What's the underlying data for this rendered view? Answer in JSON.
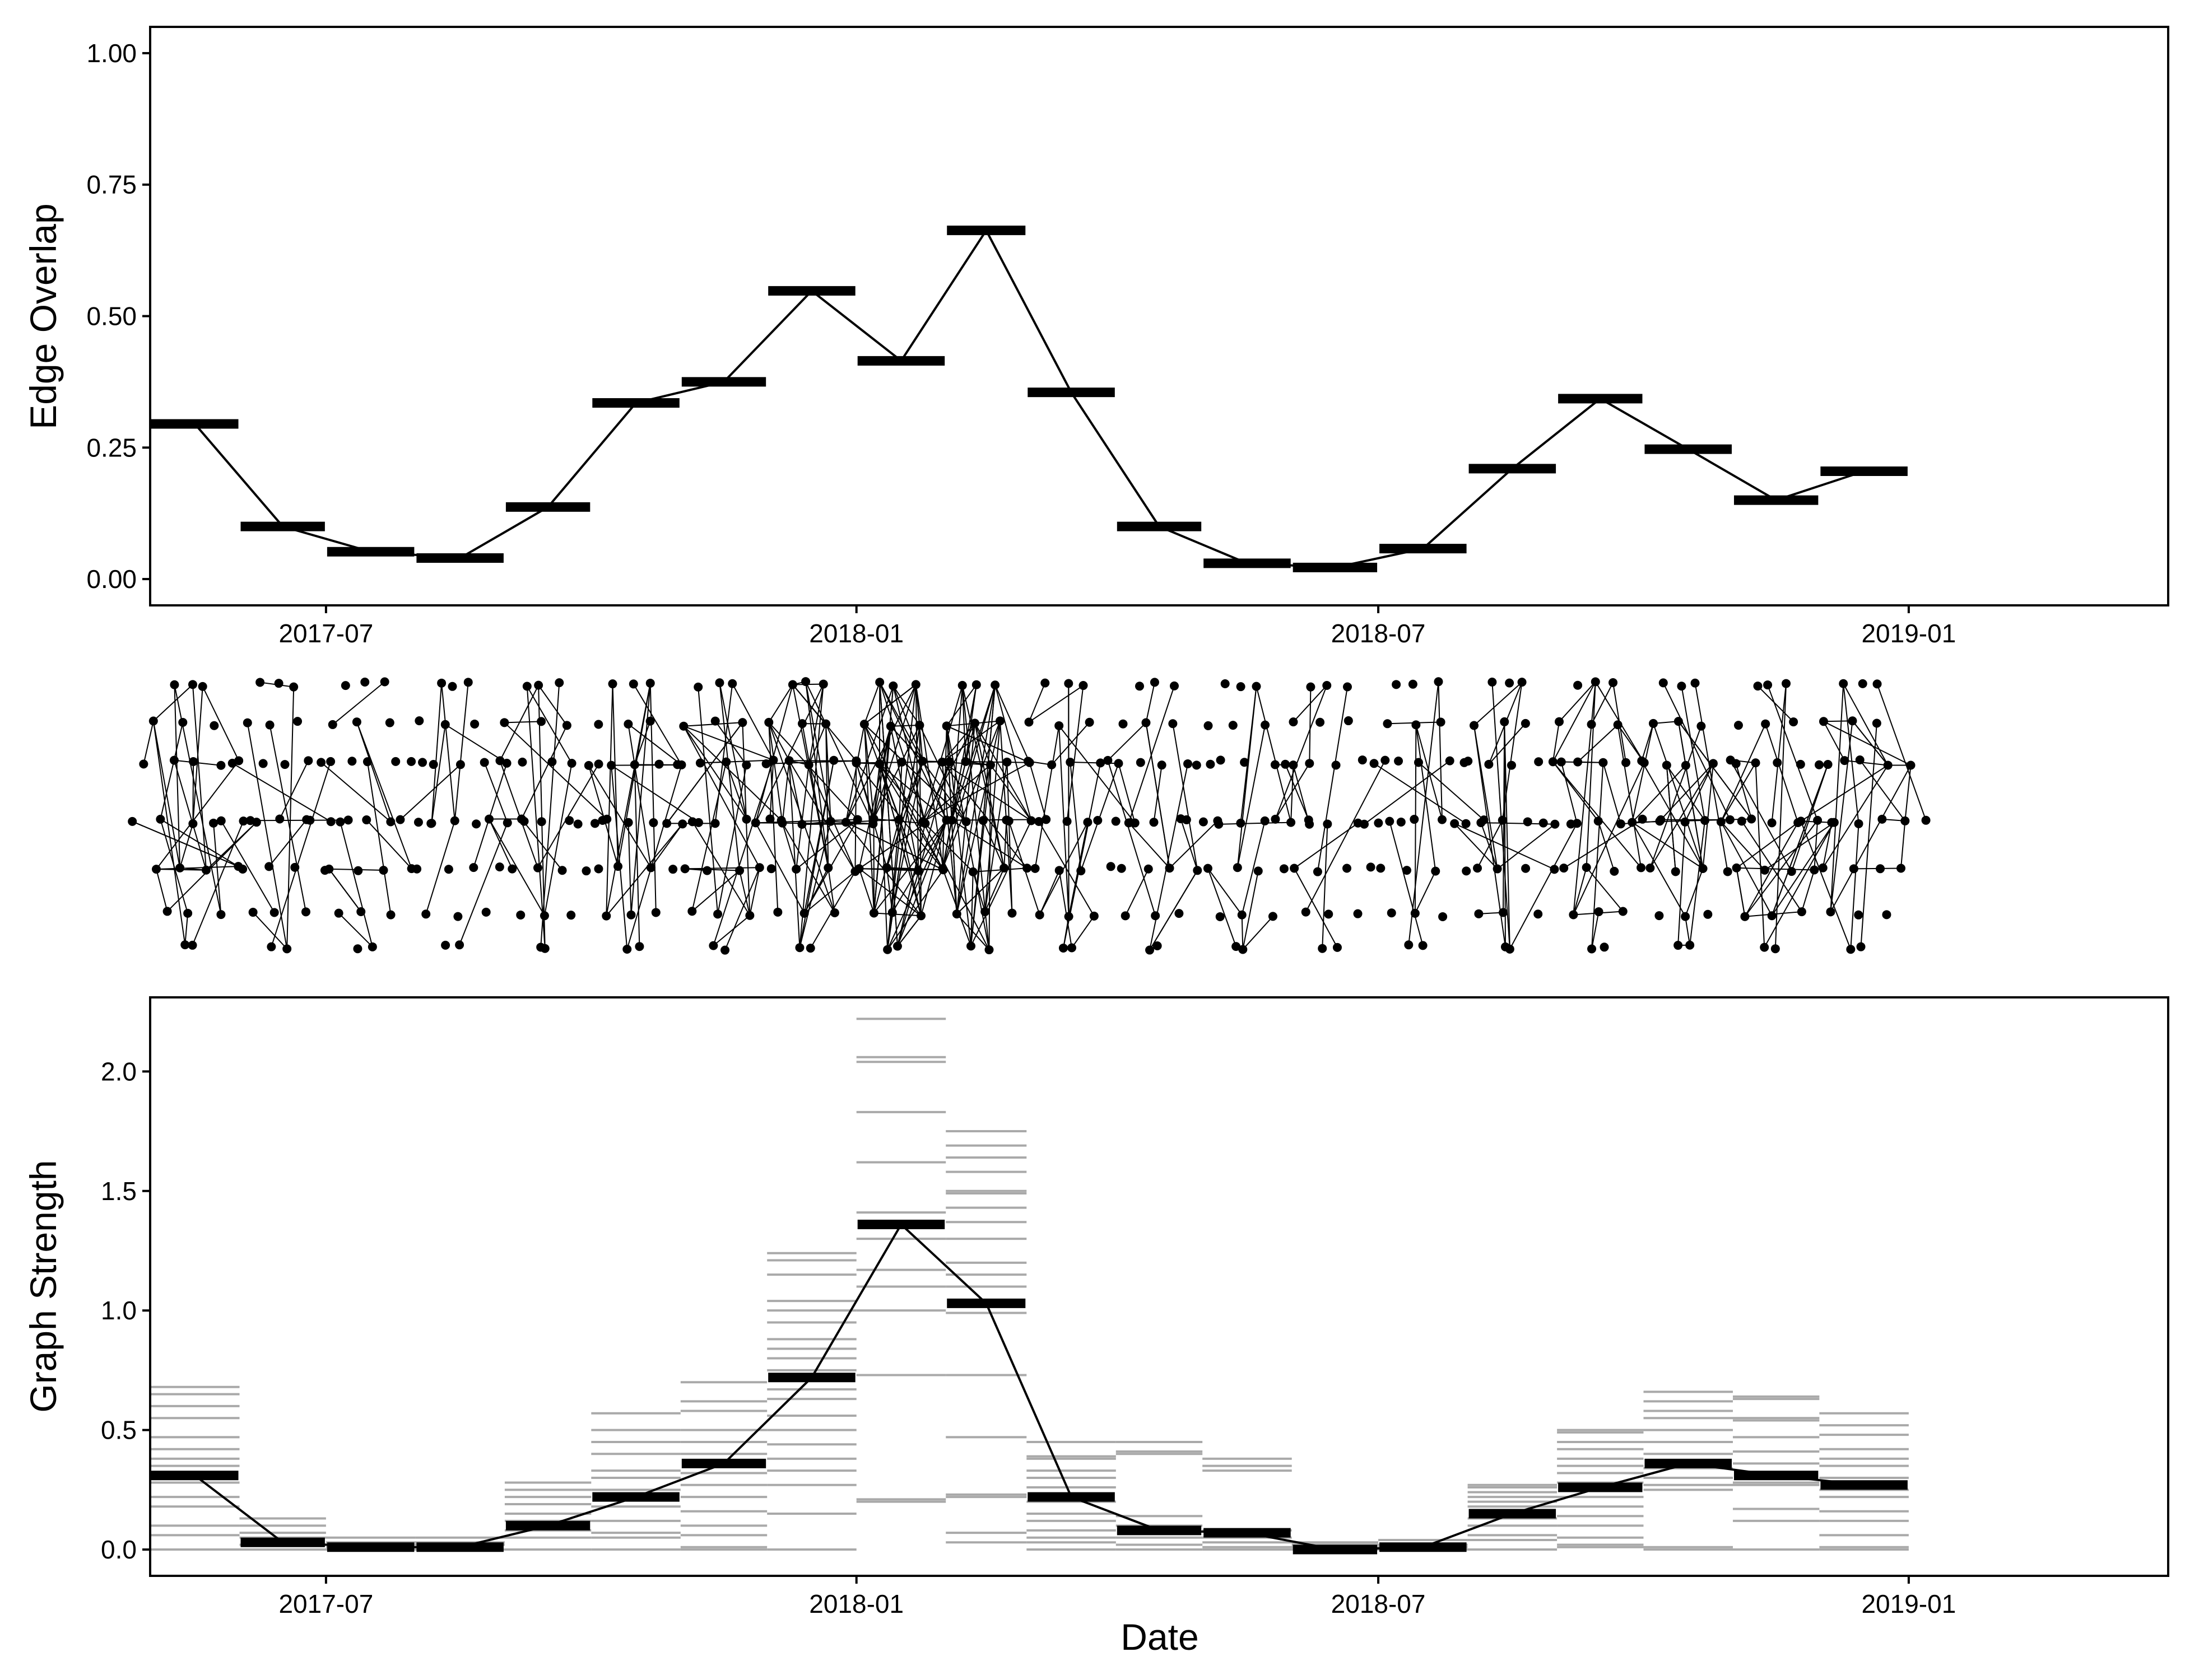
{
  "chart_data": [
    {
      "type": "line",
      "ylabel": "Edge Overlap",
      "xlabel": "",
      "x_axis_type": "date",
      "xlim": [
        "2017-05-01",
        "2019-04-01"
      ],
      "xtick_dates": [
        "2017-07-01",
        "2018-01-01",
        "2018-07-01",
        "2019-01-01"
      ],
      "xtick_labels": [
        "2017-07",
        "2018-01",
        "2018-07",
        "2019-01"
      ],
      "ylim": [
        -0.05,
        1.05
      ],
      "yticks": [
        0.0,
        0.25,
        0.5,
        0.75,
        1.0
      ],
      "ytick_labels": [
        "0.00",
        "0.25",
        "0.50",
        "0.75",
        "1.00"
      ],
      "grid": false,
      "series": [
        {
          "periods": [
            {
              "start": "2017-05-01",
              "end": "2017-06-01",
              "value": 0.295
            },
            {
              "start": "2017-06-01",
              "end": "2017-07-01",
              "value": 0.1
            },
            {
              "start": "2017-07-01",
              "end": "2017-08-01",
              "value": 0.052
            },
            {
              "start": "2017-08-01",
              "end": "2017-09-01",
              "value": 0.04
            },
            {
              "start": "2017-09-01",
              "end": "2017-10-01",
              "value": 0.137
            },
            {
              "start": "2017-10-01",
              "end": "2017-11-01",
              "value": 0.335
            },
            {
              "start": "2017-11-01",
              "end": "2017-12-01",
              "value": 0.375
            },
            {
              "start": "2017-12-01",
              "end": "2018-01-01",
              "value": 0.548
            },
            {
              "start": "2018-01-01",
              "end": "2018-02-01",
              "value": 0.415
            },
            {
              "start": "2018-02-01",
              "end": "2018-03-01",
              "value": 0.663
            },
            {
              "start": "2018-03-01",
              "end": "2018-04-01",
              "value": 0.355
            },
            {
              "start": "2018-04-01",
              "end": "2018-05-01",
              "value": 0.1
            },
            {
              "start": "2018-05-01",
              "end": "2018-06-01",
              "value": 0.03
            },
            {
              "start": "2018-06-01",
              "end": "2018-07-01",
              "value": 0.022
            },
            {
              "start": "2018-07-01",
              "end": "2018-08-01",
              "value": 0.058
            },
            {
              "start": "2018-08-01",
              "end": "2018-09-01",
              "value": 0.21
            },
            {
              "start": "2018-09-01",
              "end": "2018-10-01",
              "value": 0.343
            },
            {
              "start": "2018-10-01",
              "end": "2018-11-01",
              "value": 0.247
            },
            {
              "start": "2018-11-01",
              "end": "2018-12-01",
              "value": 0.15
            },
            {
              "start": "2018-12-01",
              "end": "2019-01-01",
              "value": 0.205
            }
          ]
        }
      ]
    },
    {
      "type": "line",
      "ylabel": "Graph Strength",
      "xlabel": "Date",
      "x_axis_type": "date",
      "xlim": [
        "2017-05-01",
        "2019-04-01"
      ],
      "xtick_dates": [
        "2017-07-01",
        "2018-01-01",
        "2018-07-01",
        "2019-01-01"
      ],
      "xtick_labels": [
        "2017-07",
        "2018-01",
        "2018-07",
        "2019-01"
      ],
      "ylim": [
        -0.11,
        2.31
      ],
      "yticks": [
        0.0,
        0.5,
        1.0,
        1.5,
        2.0
      ],
      "ytick_labels": [
        "0.0",
        "0.5",
        "1.0",
        "1.5",
        "2.0"
      ],
      "grid": false,
      "series": [
        {
          "periods": [
            {
              "start": "2017-05-01",
              "end": "2017-06-01",
              "value": 0.31,
              "samples": [
                0.68,
                0.65,
                0.6,
                0.55,
                0.47,
                0.42,
                0.38,
                0.35,
                0.28,
                0.22,
                0.18,
                0.1,
                0.06,
                0.0
              ]
            },
            {
              "start": "2017-06-01",
              "end": "2017-07-01",
              "value": 0.03,
              "samples": [
                0.13,
                0.1,
                0.07,
                0.05,
                0.02,
                0.0
              ]
            },
            {
              "start": "2017-07-01",
              "end": "2017-08-01",
              "value": 0.01,
              "samples": [
                0.05,
                0.03,
                0.02,
                0.01,
                0.0
              ]
            },
            {
              "start": "2017-08-01",
              "end": "2017-09-01",
              "value": 0.01,
              "samples": [
                0.05,
                0.03,
                0.02,
                0.0
              ]
            },
            {
              "start": "2017-09-01",
              "end": "2017-10-01",
              "value": 0.1,
              "samples": [
                0.28,
                0.25,
                0.22,
                0.19,
                0.15,
                0.12,
                0.08,
                0.05,
                0.0
              ]
            },
            {
              "start": "2017-10-01",
              "end": "2017-11-01",
              "value": 0.22,
              "samples": [
                0.57,
                0.5,
                0.45,
                0.4,
                0.33,
                0.3,
                0.25,
                0.18,
                0.12,
                0.07,
                0.05,
                0.0
              ]
            },
            {
              "start": "2017-11-01",
              "end": "2017-12-01",
              "value": 0.36,
              "samples": [
                0.7,
                0.62,
                0.58,
                0.5,
                0.45,
                0.4,
                0.32,
                0.27,
                0.22,
                0.16,
                0.1,
                0.06,
                0.01,
                0.0
              ]
            },
            {
              "start": "2017-12-01",
              "end": "2018-01-01",
              "value": 0.72,
              "samples": [
                1.24,
                1.21,
                1.15,
                1.04,
                1.0,
                0.95,
                0.88,
                0.84,
                0.8,
                0.75,
                0.67,
                0.63,
                0.56,
                0.5,
                0.44,
                0.38,
                0.33,
                0.27,
                0.15,
                0.0
              ]
            },
            {
              "start": "2018-01-01",
              "end": "2018-02-01",
              "value": 1.36,
              "samples": [
                2.22,
                2.06,
                2.04,
                1.83,
                1.62,
                1.41,
                1.3,
                1.17,
                1.1,
                1.0,
                0.73,
                0.21,
                0.2
              ]
            },
            {
              "start": "2018-02-01",
              "end": "2018-03-01",
              "value": 1.03,
              "samples": [
                1.75,
                1.69,
                1.64,
                1.58,
                1.5,
                1.49,
                1.43,
                1.37,
                1.3,
                1.2,
                1.15,
                1.1,
                0.99,
                0.73,
                0.47,
                0.23,
                0.22,
                0.07,
                0.03
              ]
            },
            {
              "start": "2018-03-01",
              "end": "2018-04-01",
              "value": 0.22,
              "samples": [
                0.45,
                0.39,
                0.38,
                0.33,
                0.3,
                0.26,
                0.2,
                0.15,
                0.12,
                0.08,
                0.05,
                0.03,
                0.0
              ]
            },
            {
              "start": "2018-04-01",
              "end": "2018-05-01",
              "value": 0.08,
              "samples": [
                0.45,
                0.41,
                0.4,
                0.14,
                0.1,
                0.05,
                0.02,
                0.0
              ]
            },
            {
              "start": "2018-05-01",
              "end": "2018-06-01",
              "value": 0.07,
              "samples": [
                0.38,
                0.35,
                0.33,
                0.08,
                0.05,
                0.03,
                0.01,
                0.0
              ]
            },
            {
              "start": "2018-06-01",
              "end": "2018-07-01",
              "value": 0.0,
              "samples": [
                0.03,
                0.02,
                0.01,
                0.0
              ]
            },
            {
              "start": "2018-07-01",
              "end": "2018-08-01",
              "value": 0.01,
              "samples": [
                0.04,
                0.02,
                0.01,
                0.0
              ]
            },
            {
              "start": "2018-08-01",
              "end": "2018-09-01",
              "value": 0.15,
              "samples": [
                0.27,
                0.26,
                0.24,
                0.22,
                0.2,
                0.18,
                0.13,
                0.1,
                0.06,
                0.04,
                0.0
              ]
            },
            {
              "start": "2018-09-01",
              "end": "2018-10-01",
              "value": 0.26,
              "samples": [
                0.5,
                0.49,
                0.45,
                0.42,
                0.38,
                0.35,
                0.32,
                0.28,
                0.22,
                0.18,
                0.14,
                0.1,
                0.05,
                0.02,
                0.01
              ]
            },
            {
              "start": "2018-10-01",
              "end": "2018-11-01",
              "value": 0.36,
              "samples": [
                0.66,
                0.62,
                0.58,
                0.55,
                0.5,
                0.45,
                0.4,
                0.34,
                0.3,
                0.27,
                0.25,
                0.01,
                0.0
              ]
            },
            {
              "start": "2018-11-01",
              "end": "2018-12-01",
              "value": 0.31,
              "samples": [
                0.64,
                0.63,
                0.55,
                0.54,
                0.47,
                0.41,
                0.36,
                0.28,
                0.27,
                0.17,
                0.12,
                0.0
              ]
            },
            {
              "start": "2018-12-01",
              "end": "2019-01-01",
              "value": 0.27,
              "samples": [
                0.57,
                0.52,
                0.48,
                0.42,
                0.38,
                0.35,
                0.3,
                0.25,
                0.22,
                0.16,
                0.12,
                0.06,
                0.01,
                0.0
              ]
            }
          ]
        }
      ]
    }
  ]
}
